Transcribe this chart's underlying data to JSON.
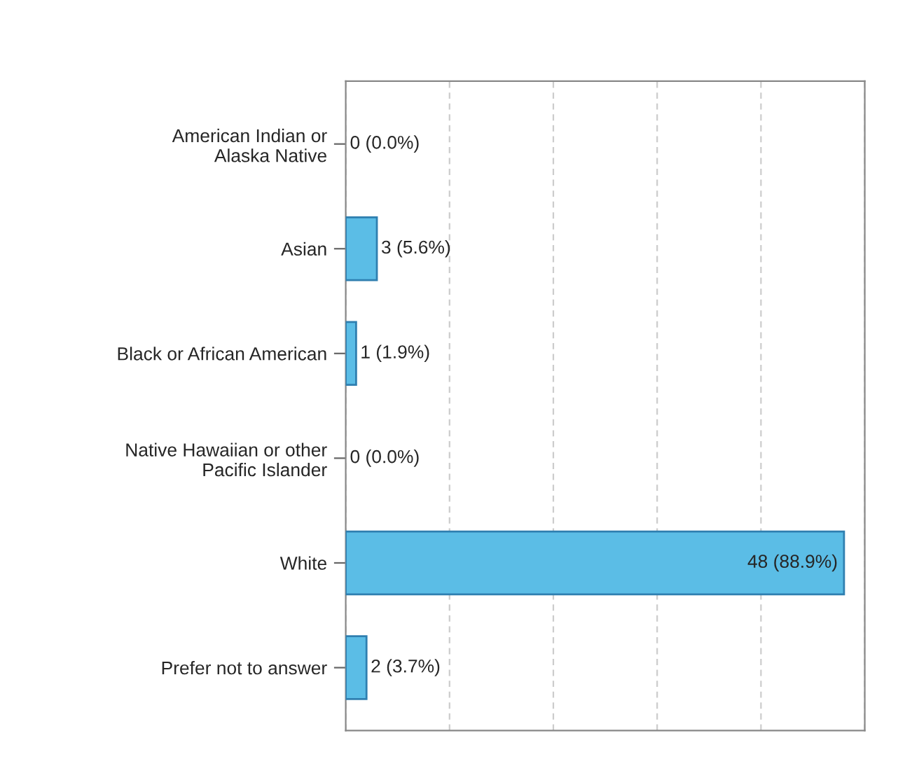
{
  "chart_data": {
    "type": "bar",
    "orientation": "horizontal",
    "categories": [
      "American Indian or\nAlaska Native",
      "Asian",
      "Black or African American",
      "Native Hawaiian or other\nPacific Islander",
      "White",
      "Prefer not to answer"
    ],
    "values": [
      0,
      3,
      1,
      0,
      48,
      2
    ],
    "value_labels": [
      "0 (0.0%)",
      "3 (5.6%)",
      "1 (1.9%)",
      "0 (0.0%)",
      "48 (88.9%)",
      "2 (3.7%)"
    ],
    "color": "#5bbde6",
    "xlim": [
      0,
      50
    ],
    "xticks": [
      {
        "value": 0,
        "label": null
      },
      {
        "value": 10,
        "label": null
      },
      {
        "value": 20,
        "label": null
      },
      {
        "value": 30,
        "label": null
      },
      {
        "value": 40,
        "label": null
      },
      {
        "value": 50,
        "label": null
      }
    ],
    "tick_labels": "y",
    "grid": "x"
  }
}
